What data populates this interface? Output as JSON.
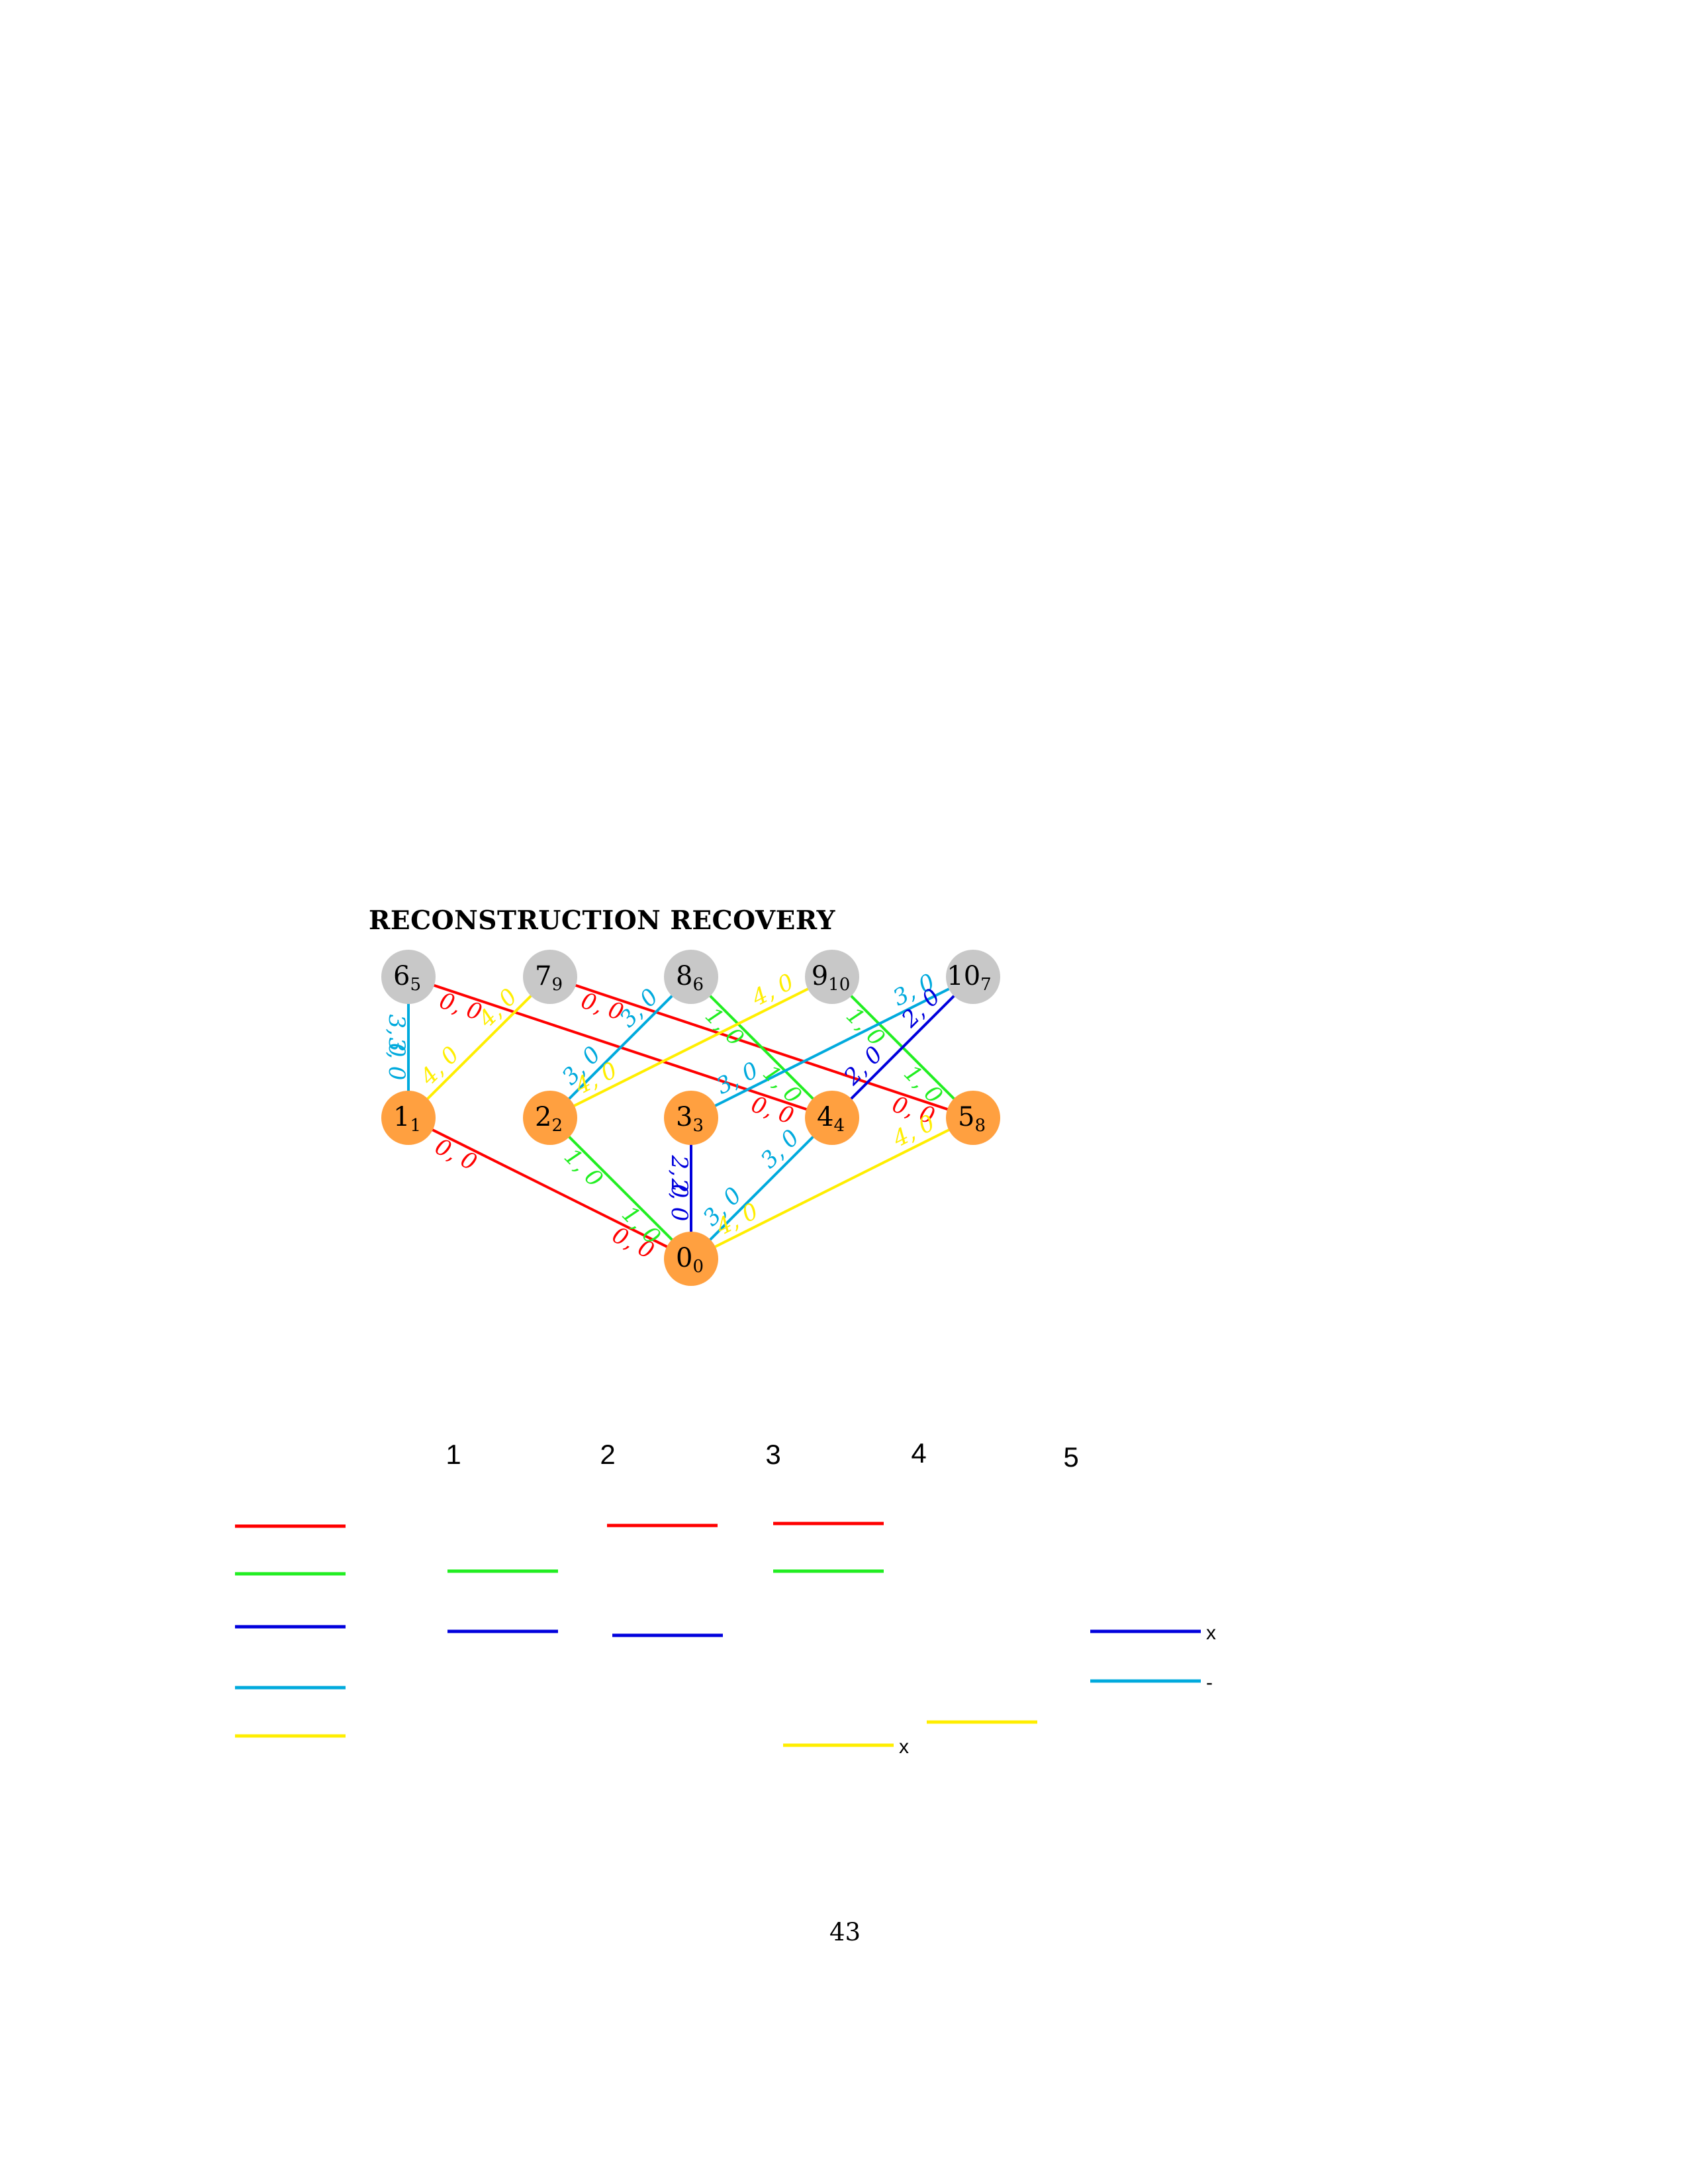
{
  "title": "RECONSTRUCTION RECOVERY",
  "page_number": "43",
  "colors": {
    "red": "#ff0000",
    "green": "#22ee22",
    "blue": "#0000dd",
    "cyan": "#00aadd",
    "yellow": "#ffee00",
    "node_orange": "#ffa040",
    "node_gray": "#c8c8c8"
  },
  "graph": {
    "nodes": [
      {
        "id": "6",
        "label": "6",
        "sub": "5",
        "kind": "gray"
      },
      {
        "id": "7",
        "label": "7",
        "sub": "9",
        "kind": "gray"
      },
      {
        "id": "8",
        "label": "8",
        "sub": "6",
        "kind": "gray"
      },
      {
        "id": "9",
        "label": "9",
        "sub": "10",
        "kind": "gray"
      },
      {
        "id": "10",
        "label": "10",
        "sub": "7",
        "kind": "gray"
      },
      {
        "id": "1",
        "label": "1",
        "sub": "1",
        "kind": "orange"
      },
      {
        "id": "2",
        "label": "2",
        "sub": "2",
        "kind": "orange"
      },
      {
        "id": "3",
        "label": "3",
        "sub": "3",
        "kind": "orange"
      },
      {
        "id": "4",
        "label": "4",
        "sub": "4",
        "kind": "orange"
      },
      {
        "id": "5",
        "label": "5",
        "sub": "8",
        "kind": "orange"
      },
      {
        "id": "0",
        "label": "0",
        "sub": "0",
        "kind": "orange"
      }
    ],
    "edges": [
      {
        "from": "6",
        "to": "1",
        "color": "cyan",
        "label_from": "3, 0",
        "label_to": "3, 0"
      },
      {
        "from": "6",
        "to": "4",
        "color": "red",
        "label_from": "0, 0",
        "label_to": "0, 0"
      },
      {
        "from": "7",
        "to": "1",
        "color": "yellow",
        "label_from": "4, 0",
        "label_to": "4, 0"
      },
      {
        "from": "7",
        "to": "5",
        "color": "red",
        "label_from": "0, 0",
        "label_to": "0, 0"
      },
      {
        "from": "8",
        "to": "2",
        "color": "cyan",
        "label_from": "3, 0",
        "label_to": "3, 0"
      },
      {
        "from": "8",
        "to": "4",
        "color": "green",
        "label_from": "1, 0",
        "label_to": "1, 0"
      },
      {
        "from": "9",
        "to": "2",
        "color": "yellow",
        "label_from": "4, 0",
        "label_to": "4, 0"
      },
      {
        "from": "9",
        "to": "5",
        "color": "green",
        "label_from": "1, 0",
        "label_to": "1, 0"
      },
      {
        "from": "10",
        "to": "3",
        "color": "cyan",
        "label_from": "3, 0",
        "label_to": "3, 0"
      },
      {
        "from": "10",
        "to": "4",
        "color": "blue",
        "label_from": "2, 0",
        "label_to": "2, 0"
      },
      {
        "from": "1",
        "to": "0",
        "color": "red",
        "label_from": "0, 0",
        "label_to": "0, 0"
      },
      {
        "from": "2",
        "to": "0",
        "color": "green",
        "label_from": "1, 0",
        "label_to": "1, 0"
      },
      {
        "from": "3",
        "to": "0",
        "color": "blue",
        "label_from": "2, 0",
        "label_to": "2, 0"
      },
      {
        "from": "4",
        "to": "0",
        "color": "cyan",
        "label_from": "3, 0",
        "label_to": "3, 0"
      },
      {
        "from": "5",
        "to": "0",
        "color": "yellow",
        "label_from": "4, 0",
        "label_to": "4, 0"
      }
    ]
  },
  "schedule": {
    "columns": [
      "1",
      "2",
      "3",
      "4",
      "5"
    ],
    "legend_rows": [
      "red",
      "green",
      "blue",
      "cyan",
      "yellow"
    ],
    "segments": [
      {
        "column": "1",
        "color": "green",
        "mark": ""
      },
      {
        "column": "1",
        "color": "blue",
        "mark": ""
      },
      {
        "column": "2",
        "color": "red",
        "mark": ""
      },
      {
        "column": "2",
        "color": "blue",
        "mark": ""
      },
      {
        "column": "3",
        "color": "red",
        "mark": ""
      },
      {
        "column": "3",
        "color": "green",
        "mark": ""
      },
      {
        "column": "3",
        "color": "yellow",
        "mark": "x"
      },
      {
        "column": "4",
        "color": "yellow",
        "mark": ""
      },
      {
        "column": "5",
        "color": "blue",
        "mark": "x"
      },
      {
        "column": "5",
        "color": "cyan",
        "mark": "-"
      }
    ]
  }
}
